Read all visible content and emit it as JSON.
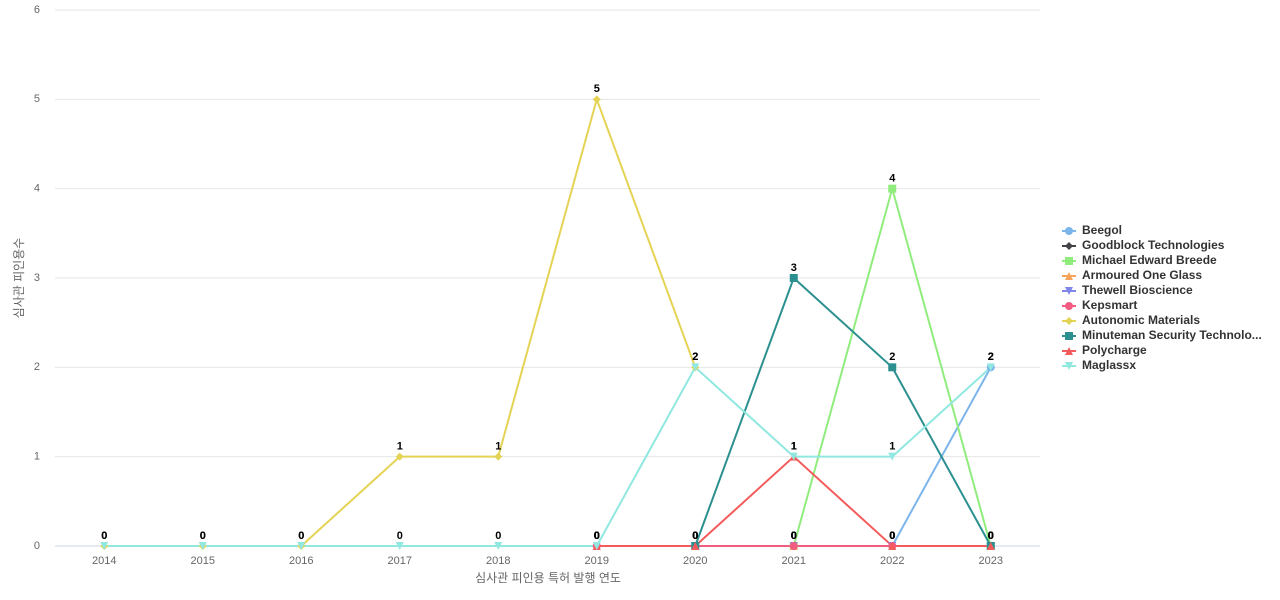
{
  "chart_data": {
    "type": "line",
    "x_label": "심사관 피인용 특허 발행 연도",
    "y_label": "심사관 피인용수",
    "categories": [
      "2014",
      "2015",
      "2016",
      "2017",
      "2018",
      "2019",
      "2020",
      "2021",
      "2022",
      "2023"
    ],
    "ylim": [
      0,
      6
    ],
    "yticks": [
      0,
      1,
      2,
      3,
      4,
      5,
      6
    ],
    "grid": true,
    "legend": "right",
    "series": [
      {
        "name": "Beegol",
        "color": "#7cb5ec",
        "marker": "circle",
        "values": [
          null,
          null,
          null,
          null,
          null,
          null,
          null,
          null,
          0,
          2
        ]
      },
      {
        "name": "Goodblock Technologies",
        "color": "#434348",
        "marker": "diamond",
        "values": [
          null,
          null,
          null,
          null,
          null,
          0,
          0,
          0,
          0,
          0
        ]
      },
      {
        "name": "Michael Edward Breede",
        "color": "#90ed7d",
        "marker": "square",
        "values": [
          null,
          null,
          null,
          null,
          null,
          null,
          null,
          0,
          4,
          0
        ]
      },
      {
        "name": "Armoured One Glass",
        "color": "#f7a35c",
        "marker": "triangle",
        "values": [
          null,
          null,
          null,
          null,
          null,
          0,
          0,
          0,
          0,
          0
        ]
      },
      {
        "name": "Thewell Bioscience",
        "color": "#8085e9",
        "marker": "triangle-down",
        "values": [
          null,
          null,
          null,
          null,
          null,
          0,
          0,
          0,
          0,
          0
        ]
      },
      {
        "name": "Kepsmart",
        "color": "#f15c80",
        "marker": "circle",
        "values": [
          null,
          null,
          null,
          null,
          null,
          0,
          0,
          0,
          0,
          0
        ]
      },
      {
        "name": "Autonomic Materials",
        "color": "#e4d354",
        "marker": "diamond",
        "values": [
          0,
          0,
          0,
          1,
          1,
          5,
          2,
          null,
          null,
          null
        ]
      },
      {
        "name": "Minuteman Security Technolo...",
        "color": "#2b908f",
        "marker": "square",
        "values": [
          null,
          null,
          null,
          null,
          null,
          null,
          0,
          3,
          2,
          0
        ]
      },
      {
        "name": "Polycharge",
        "color": "#f45b5b",
        "marker": "triangle",
        "values": [
          null,
          null,
          null,
          null,
          null,
          0,
          0,
          1,
          0,
          0
        ]
      },
      {
        "name": "Maglassx",
        "color": "#91e8e1",
        "marker": "triangle-down",
        "values": [
          0,
          0,
          0,
          0,
          0,
          0,
          2,
          1,
          1,
          2
        ]
      }
    ]
  }
}
